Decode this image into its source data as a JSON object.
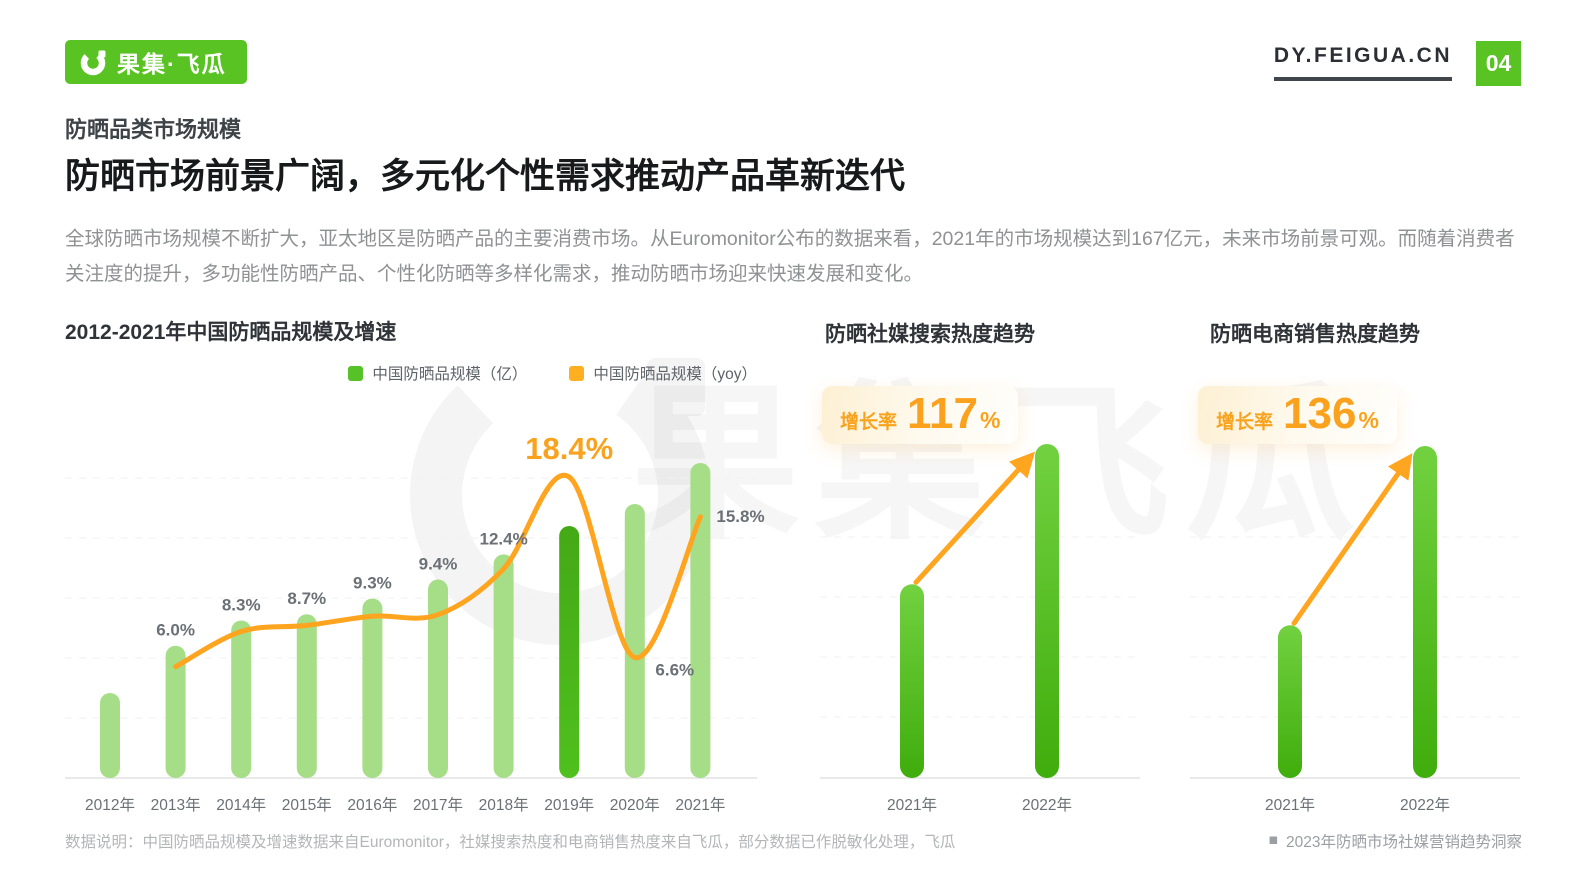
{
  "header": {
    "logo_text": "果集·飞瓜",
    "domain": "DY.FEIGUA.CN",
    "page_number": "04"
  },
  "intro": {
    "kicker": "防晒品类市场规模",
    "title": "防晒市场前景广阔，多元化个性需求推动产品革新迭代",
    "body": "全球防晒市场规模不断扩大，亚太地区是防晒产品的主要消费市场。从Euromonitor公布的数据来看，2021年的市场规模达到167亿元，未来市场前景可观。而随着消费者关注度的提升，多功能性防晒产品、个性化防晒等多样化需求，推动防晒市场迎来快速发展和变化。"
  },
  "chart_data": [
    {
      "type": "bar",
      "title": "2012-2021年中国防晒品规模及增速",
      "categories": [
        "2012年",
        "2013年",
        "2014年",
        "2015年",
        "2016年",
        "2017年",
        "2018年",
        "2019年",
        "2020年",
        "2021年"
      ],
      "series": [
        {
          "kind": "bar",
          "name": "中国防晒品规模（亿）",
          "color": "#a6dd87",
          "legend_color": "#56c228",
          "highlight_index": 7,
          "highlight_color": "#48b31a",
          "values_relative_pct_of_max": [
            27,
            42,
            50,
            52,
            57,
            63,
            71,
            80,
            87,
            100
          ],
          "values_est_yi": [
            68.2,
            72.3,
            78.3,
            85.1,
            93.0,
            101.7,
            114.3,
            135.3,
            144.2,
            167
          ]
        },
        {
          "kind": "line",
          "name": "中国防晒品规模（yoy）",
          "color": "#ffa41f",
          "legend_color": "#ffaf1f",
          "values_pct": [
            null,
            6.0,
            8.3,
            8.7,
            9.3,
            9.4,
            12.4,
            18.4,
            6.6,
            15.8
          ],
          "peak_index": 7
        }
      ],
      "legend_position": "top-right",
      "grid": "dashed-horizontal",
      "ylim_yoy_pct": [
        0,
        20
      ]
    },
    {
      "type": "bar",
      "title": "防晒社媒搜索热度趋势",
      "growth_label": "增长率",
      "growth_value": "117",
      "growth_unit": "%",
      "categories": [
        "2021年",
        "2022年"
      ],
      "values_relative_pct_of_max": [
        58,
        100
      ],
      "bar_color_top": "#72d140",
      "bar_color_bottom": "#3fad0c",
      "arrow_color": "#ffa51f",
      "grid": "dashed-horizontal"
    },
    {
      "type": "bar",
      "title": "防晒电商销售热度趋势",
      "growth_label": "增长率",
      "growth_value": "136",
      "growth_unit": "%",
      "categories": [
        "2021年",
        "2022年"
      ],
      "values_relative_pct_of_max": [
        46,
        100
      ],
      "bar_color_top": "#72d140",
      "bar_color_bottom": "#3fad0c",
      "arrow_color": "#ffa51f",
      "grid": "dashed-horizontal"
    }
  ],
  "watermark": {
    "chars": [
      "果",
      "集",
      "飞",
      "瓜"
    ]
  },
  "footer": {
    "note": "数据说明：中国防晒品规模及增速数据来自Euromonitor，社媒搜索热度和电商销售热度来自飞瓜，部分数据已作脱敏化处理，飞瓜",
    "marker": "■",
    "report": "2023年防晒市场社媒营销趋势洞察"
  },
  "colors": {
    "brand_green": "#58c322",
    "bar_light_green": "#a6dd87",
    "bar_dark_green": "#48b31a",
    "duo_bar_green": "#54bd20",
    "orange": "#ffa41f",
    "badge_orange": "#f9a21b",
    "title_dark": "#17191b",
    "body_gray": "#8f9193",
    "label_gray": "#6a7076",
    "footer_gray": "#b3b5b7"
  }
}
